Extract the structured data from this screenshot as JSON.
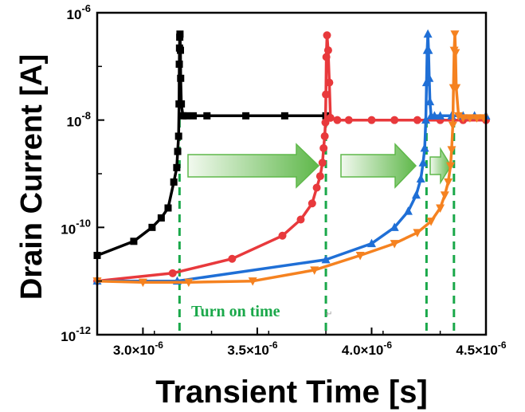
{
  "chart_data": {
    "type": "line",
    "title": "",
    "xlabel": "Transient Time [s]",
    "ylabel": "Drain Current [A]",
    "xlim": [
      2.8e-06,
      4.5e-06
    ],
    "ylim": [
      1e-12,
      1e-06
    ],
    "yscale": "log",
    "x_ticks": [
      {
        "value": 3e-06,
        "mantissa": "3.0×10",
        "exp": "-6"
      },
      {
        "value": 3.5e-06,
        "mantissa": "3.5×10",
        "exp": "-6"
      },
      {
        "value": 4e-06,
        "mantissa": "4.0×10",
        "exp": "-6"
      },
      {
        "value": 4.5e-06,
        "mantissa": "4.5×10",
        "exp": "-6"
      }
    ],
    "y_ticks": [
      {
        "value": 1e-12,
        "base": "10",
        "exp": "-12"
      },
      {
        "value": 1e-10,
        "base": "10",
        "exp": "-10"
      },
      {
        "value": 1e-08,
        "base": "10",
        "exp": "-8"
      },
      {
        "value": 1e-06,
        "base": "10",
        "exp": "-6"
      }
    ],
    "series": [
      {
        "color": "#000000",
        "marker": "square",
        "x": [
          2.8e-06,
          2.96e-06,
          3.04e-06,
          3.08e-06,
          3.11e-06,
          3.135e-06,
          3.148e-06,
          3.152e-06,
          3.156e-06,
          3.158e-06,
          3.159e-06,
          3.16e-06,
          3.161e-06,
          3.162e-06,
          3.164e-06,
          3.165e-06,
          3.168e-06,
          3.175e-06,
          3.19e-06,
          3.22e-06,
          3.28e-06,
          3.45e-06,
          3.62e-06,
          3.8e-06
        ],
        "y": [
          3e-11,
          5.5e-11,
          1e-10,
          1.5e-10,
          2.3e-10,
          7e-10,
          1.3e-09,
          2.6e-09,
          5e-09,
          2e-08,
          1.1e-07,
          2.2e-07,
          3.5e-07,
          4e-07,
          2e-07,
          6e-08,
          2e-08,
          1.2e-08,
          1.2e-08,
          1.2e-08,
          1.2e-08,
          1.2e-08,
          1.2e-08,
          1.2e-08
        ]
      },
      {
        "color": "#e8393c",
        "marker": "circle",
        "x": [
          2.8e-06,
          3.13e-06,
          3.39e-06,
          3.61e-06,
          3.69e-06,
          3.74e-06,
          3.76e-06,
          3.775e-06,
          3.785e-06,
          3.79e-06,
          3.795e-06,
          3.798e-06,
          3.8e-06,
          3.802e-06,
          3.805e-06,
          3.81e-06,
          3.815e-06,
          3.82e-06,
          3.85e-06,
          3.9e-06,
          4e-06,
          4.1e-06,
          4.2e-06,
          4.3e-06,
          4.4e-06,
          4.5e-06
        ],
        "y": [
          1e-11,
          1.4e-11,
          2.6e-11,
          7e-11,
          1.4e-10,
          2.8e-10,
          5.5e-10,
          9e-10,
          1.6e-09,
          3e-09,
          5e-09,
          9e-09,
          3e-08,
          1.5e-07,
          3.8e-07,
          2e-07,
          5e-08,
          1.1e-08,
          1e-08,
          1e-08,
          1e-08,
          1e-08,
          1e-08,
          1e-08,
          1e-08,
          1e-08
        ]
      },
      {
        "color": "#1f6fd6",
        "marker": "triangle-up",
        "x": [
          2.8e-06,
          3.15e-06,
          3.8e-06,
          4e-06,
          4.1e-06,
          4.16e-06,
          4.195e-06,
          4.215e-06,
          4.225e-06,
          4.232e-06,
          4.237e-06,
          4.24e-06,
          4.243e-06,
          4.246e-06,
          4.249e-06,
          4.252e-06,
          4.255e-06,
          4.26e-06,
          4.275e-06,
          4.3e-06,
          4.35e-06,
          4.4e-06,
          4.45e-06,
          4.5e-06
        ],
        "y": [
          1e-11,
          1e-11,
          2.5e-11,
          5e-11,
          1e-10,
          2e-10,
          4e-10,
          8e-10,
          1.6e-09,
          3e-09,
          1e-08,
          5e-08,
          2e-07,
          4e-07,
          2e-07,
          6e-08,
          2.2e-08,
          1.2e-08,
          1.2e-08,
          1.2e-08,
          1.2e-08,
          1.2e-08,
          1.2e-08,
          1.2e-08
        ]
      },
      {
        "color": "#f58220",
        "marker": "triangle-down",
        "x": [
          2.8e-06,
          3e-06,
          3.2e-06,
          3.48e-06,
          3.75e-06,
          3.95e-06,
          4.1e-06,
          4.2e-06,
          4.26e-06,
          4.3e-06,
          4.32e-06,
          4.335e-06,
          4.345e-06,
          4.35e-06,
          4.355e-06,
          4.358e-06,
          4.361e-06,
          4.364e-06,
          4.367e-06,
          4.37e-06,
          4.38e-06,
          4.4e-06,
          4.43e-06,
          4.46e-06,
          4.49e-06
        ],
        "y": [
          1e-11,
          9.5e-12,
          9.5e-12,
          1e-11,
          1.6e-11,
          3e-11,
          5e-11,
          8e-11,
          1.3e-10,
          2.3e-10,
          4e-10,
          7e-10,
          1.4e-09,
          2.8e-09,
          8e-09,
          4e-08,
          2e-07,
          4e-07,
          1.8e-07,
          4e-08,
          1.2e-08,
          1.1e-08,
          1.1e-08,
          1.1e-08,
          1.1e-08
        ]
      }
    ],
    "turn_on_lines": [
      3.16e-06,
      3.8e-06,
      4.24e-06,
      4.36e-06
    ],
    "annotation": "Turn on time",
    "annotation_color": "#1aa84a",
    "arrow_color": "#5fb84a",
    "grid": false
  }
}
